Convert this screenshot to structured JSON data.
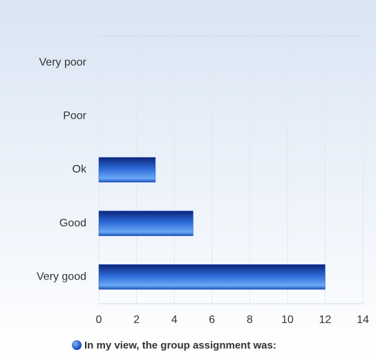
{
  "chart_data": {
    "type": "bar",
    "orientation": "horizontal",
    "categories": [
      "Very poor",
      "Poor",
      "Ok",
      "Good",
      "Very good"
    ],
    "series": [
      {
        "name": "In my view, the group assignment was:",
        "color": "#1e56c8",
        "values": [
          0,
          0,
          3,
          5,
          12
        ]
      }
    ],
    "xlim": [
      0,
      14
    ],
    "xticks": [
      0,
      2,
      4,
      6,
      8,
      10,
      12,
      14
    ],
    "grid": true,
    "legend": "bottom"
  }
}
